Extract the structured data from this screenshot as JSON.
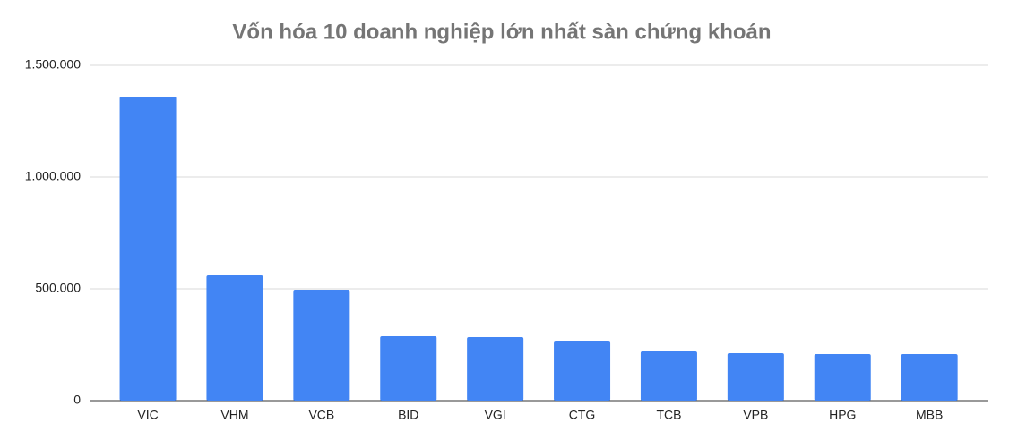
{
  "chart_data": {
    "type": "bar",
    "title": "Vốn hóa 10 doanh nghiệp lớn nhất sàn chứng khoán",
    "categories": [
      "VIC",
      "VHM",
      "VCB",
      "BID",
      "VGI",
      "CTG",
      "TCB",
      "VPB",
      "HPG",
      "MBB"
    ],
    "values": [
      1360000,
      560000,
      496000,
      288000,
      284000,
      268000,
      220000,
      212000,
      208000,
      208000
    ],
    "color": "#4285f4",
    "ylim": [
      0,
      1500000
    ],
    "yticks": [
      0,
      {
        "value": 500000,
        "label": "500.000"
      },
      {
        "value": 1000000,
        "label": "1.000.000"
      },
      {
        "value": 1500000,
        "label": "1.500.000"
      }
    ],
    "grid": true
  }
}
